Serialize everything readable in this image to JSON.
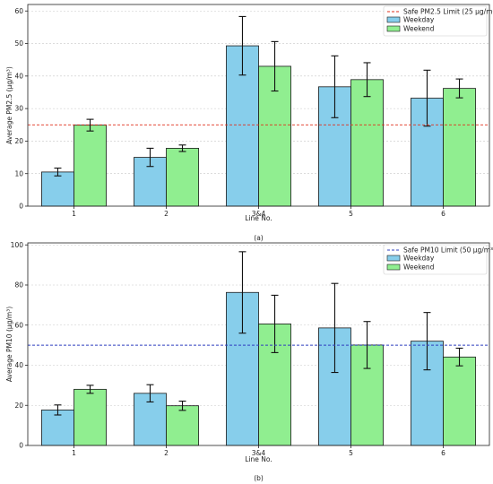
{
  "chart_data": [
    {
      "type": "bar",
      "caption": "(a)",
      "categories": [
        "1",
        "2",
        "3&4",
        "5",
        "6"
      ],
      "xlabel": "Line No.",
      "ylabel": "Average PM2.5 (μg/m³)",
      "ylim": [
        0,
        62
      ],
      "yticks": [
        0,
        10,
        20,
        30,
        40,
        50,
        60
      ],
      "grid": "horizontal",
      "legend_position": "top-right",
      "series": [
        {
          "name": "Weekday",
          "color": "#87ceeb",
          "values": [
            10.5,
            15.0,
            49.3,
            36.7,
            33.2
          ],
          "errors": [
            1.2,
            2.8,
            9.0,
            9.5,
            8.6
          ]
        },
        {
          "name": "Weekend",
          "color": "#90ee90",
          "values": [
            24.9,
            17.8,
            43.0,
            38.9,
            36.2
          ],
          "errors": [
            1.8,
            1.0,
            7.6,
            5.2,
            2.9
          ]
        }
      ],
      "threshold": {
        "value": 25,
        "label": "Safe PM2.5 Limit (25 μg/m³)",
        "color": "#e0301e"
      }
    },
    {
      "type": "bar",
      "caption": "(b)",
      "categories": [
        "1",
        "2",
        "3&4",
        "5",
        "6"
      ],
      "xlabel": "Line No.",
      "ylabel": "Average PM10 (μg/m³)",
      "ylim": [
        0,
        101
      ],
      "yticks": [
        0,
        20,
        40,
        60,
        80,
        100
      ],
      "grid": "horizontal",
      "legend_position": "top-right",
      "series": [
        {
          "name": "Weekday",
          "color": "#87ceeb",
          "values": [
            17.7,
            26.0,
            76.3,
            58.6,
            52.0
          ],
          "errors": [
            2.5,
            4.3,
            20.3,
            22.2,
            14.3
          ]
        },
        {
          "name": "Weekend",
          "color": "#90ee90",
          "values": [
            28.0,
            19.8,
            60.6,
            50.1,
            44.1
          ],
          "errors": [
            2.0,
            2.3,
            14.3,
            11.7,
            4.4
          ]
        }
      ],
      "threshold": {
        "value": 50,
        "label": "Safe PM10 Limit (50 μg/m³)",
        "color": "#2f3fbf"
      }
    }
  ]
}
